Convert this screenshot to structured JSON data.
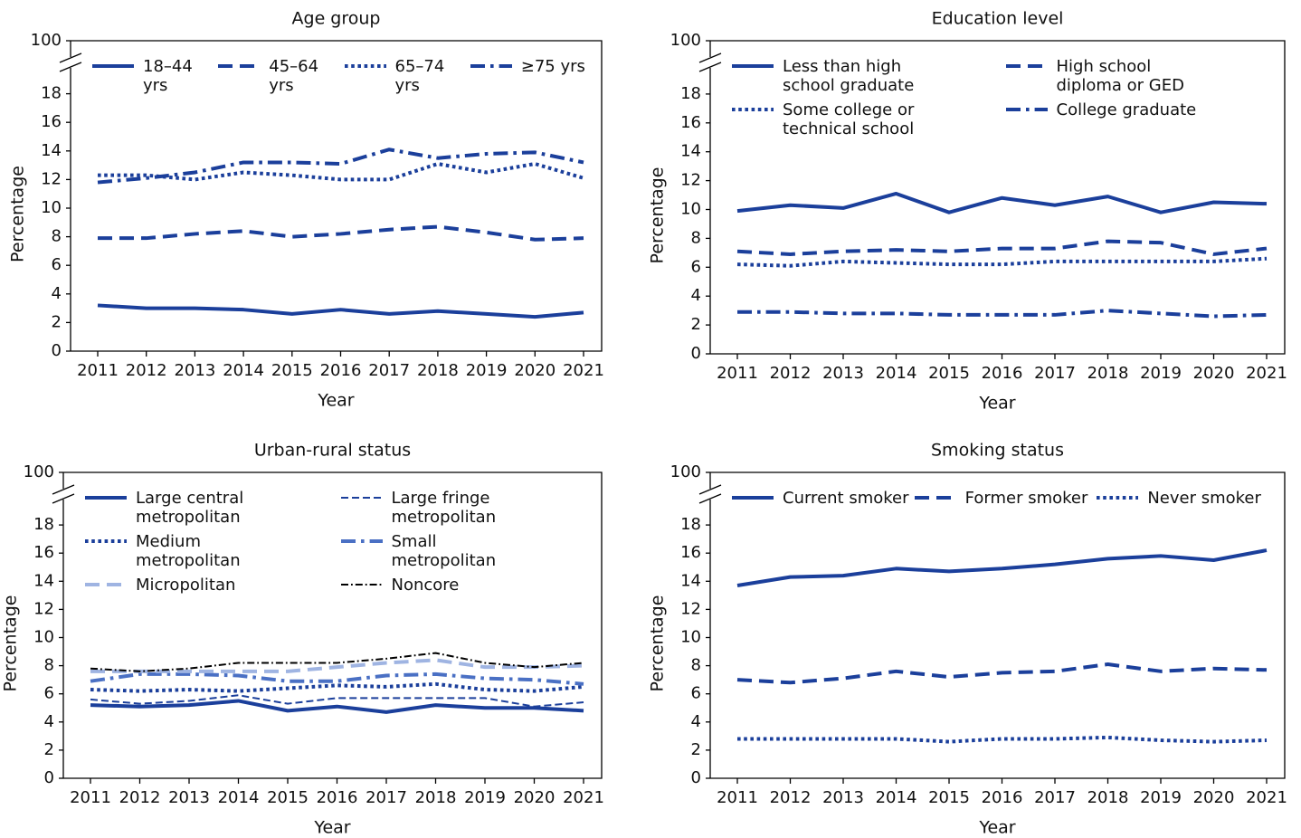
{
  "chart_data": [
    {
      "type": "line",
      "title": "Age group",
      "xlabel": "Year",
      "ylabel": "Percentage",
      "categories": [
        "2011",
        "2012",
        "2013",
        "2014",
        "2015",
        "2016",
        "2017",
        "2018",
        "2019",
        "2020",
        "2021"
      ],
      "ylim": [
        0,
        100
      ],
      "yticks": [
        0,
        2,
        4,
        6,
        8,
        10,
        12,
        14,
        16,
        18,
        100
      ],
      "axis_break": true,
      "legend_columns": 4,
      "series": [
        {
          "name": "18–44 yrs",
          "color": "#1b3f9b",
          "linestyle": "solid",
          "linewidth": 4,
          "values": [
            3.2,
            3.0,
            3.0,
            2.9,
            2.6,
            2.9,
            2.6,
            2.8,
            2.6,
            2.4,
            2.7
          ]
        },
        {
          "name": "45–64 yrs",
          "color": "#1b3f9b",
          "linestyle": "dashed",
          "linewidth": 4,
          "values": [
            7.9,
            7.9,
            8.2,
            8.4,
            8.0,
            8.2,
            8.5,
            8.7,
            8.3,
            7.8,
            7.9
          ]
        },
        {
          "name": "65–74 yrs",
          "color": "#1b3f9b",
          "linestyle": "dotted",
          "linewidth": 4,
          "values": [
            12.3,
            12.3,
            12.0,
            12.5,
            12.3,
            12.0,
            12.0,
            13.1,
            12.5,
            13.1,
            12.1
          ]
        },
        {
          "name": "≥75 yrs",
          "color": "#1b3f9b",
          "linestyle": "dashdot",
          "linewidth": 4,
          "values": [
            11.8,
            12.1,
            12.5,
            13.2,
            13.2,
            13.1,
            14.1,
            13.5,
            13.8,
            13.9,
            13.2
          ]
        }
      ]
    },
    {
      "type": "line",
      "title": "Education level",
      "xlabel": "Year",
      "ylabel": "Percentage",
      "categories": [
        "2011",
        "2012",
        "2013",
        "2014",
        "2015",
        "2016",
        "2017",
        "2018",
        "2019",
        "2020",
        "2021"
      ],
      "ylim": [
        0,
        100
      ],
      "yticks": [
        0,
        2,
        4,
        6,
        8,
        10,
        12,
        14,
        16,
        18,
        100
      ],
      "axis_break": true,
      "legend_columns": 2,
      "series": [
        {
          "name": "Less than high school graduate",
          "color": "#1b3f9b",
          "linestyle": "solid",
          "linewidth": 4,
          "values": [
            9.9,
            10.3,
            10.1,
            11.1,
            9.8,
            10.8,
            10.3,
            10.9,
            9.8,
            10.5,
            10.4
          ]
        },
        {
          "name": "High school diploma or GED",
          "color": "#1b3f9b",
          "linestyle": "dashed",
          "linewidth": 4,
          "values": [
            7.1,
            6.9,
            7.1,
            7.2,
            7.1,
            7.3,
            7.3,
            7.8,
            7.7,
            6.9,
            7.3
          ]
        },
        {
          "name": "Some college or technical school",
          "color": "#1b3f9b",
          "linestyle": "dotted",
          "linewidth": 4,
          "values": [
            6.2,
            6.1,
            6.4,
            6.3,
            6.2,
            6.2,
            6.4,
            6.4,
            6.4,
            6.4,
            6.6
          ]
        },
        {
          "name": "College graduate",
          "color": "#1b3f9b",
          "linestyle": "dashdot",
          "linewidth": 4,
          "values": [
            2.9,
            2.9,
            2.8,
            2.8,
            2.7,
            2.7,
            2.7,
            3.0,
            2.8,
            2.6,
            2.7
          ]
        }
      ]
    },
    {
      "type": "line",
      "title": "Urban-rural status",
      "xlabel": "Year",
      "ylabel": "Percentage",
      "categories": [
        "2011",
        "2012",
        "2013",
        "2014",
        "2015",
        "2016",
        "2017",
        "2018",
        "2019",
        "2020",
        "2021"
      ],
      "ylim": [
        0,
        100
      ],
      "yticks": [
        0,
        2,
        4,
        6,
        8,
        10,
        12,
        14,
        16,
        18,
        100
      ],
      "axis_break": true,
      "legend_columns": 2,
      "series": [
        {
          "name": "Large central metropolitan",
          "color": "#1b3f9b",
          "linestyle": "solid",
          "linewidth": 4,
          "values": [
            5.2,
            5.1,
            5.2,
            5.5,
            4.8,
            5.1,
            4.7,
            5.2,
            5.0,
            5.0,
            4.8
          ]
        },
        {
          "name": "Large fringe metropolitan",
          "color": "#1b3f9b",
          "linestyle": "dashed",
          "linewidth": 2,
          "values": [
            5.6,
            5.3,
            5.5,
            5.9,
            5.3,
            5.7,
            5.7,
            5.7,
            5.7,
            5.1,
            5.4
          ]
        },
        {
          "name": "Medium metropolitan",
          "color": "#1b3f9b",
          "linestyle": "dotted",
          "linewidth": 4,
          "values": [
            6.3,
            6.2,
            6.3,
            6.2,
            6.4,
            6.6,
            6.5,
            6.7,
            6.3,
            6.2,
            6.5
          ]
        },
        {
          "name": "Small metropolitan",
          "color": "#4a70c4",
          "linestyle": "dashdot",
          "linewidth": 4,
          "values": [
            6.9,
            7.4,
            7.4,
            7.3,
            6.9,
            6.9,
            7.3,
            7.4,
            7.1,
            7.0,
            6.7
          ]
        },
        {
          "name": "Micropolitan",
          "color": "#9fb4e2",
          "linestyle": "dashed",
          "linewidth": 4,
          "values": [
            7.6,
            7.6,
            7.6,
            7.6,
            7.6,
            7.9,
            8.2,
            8.4,
            7.9,
            7.9,
            8.0
          ]
        },
        {
          "name": "Noncore",
          "color": "#000000",
          "linestyle": "dashdot",
          "linewidth": 2,
          "values": [
            7.8,
            7.6,
            7.8,
            8.2,
            8.2,
            8.2,
            8.5,
            8.9,
            8.2,
            7.9,
            8.2
          ]
        }
      ]
    },
    {
      "type": "line",
      "title": "Smoking status",
      "xlabel": "Year",
      "ylabel": "Percentage",
      "categories": [
        "2011",
        "2012",
        "2013",
        "2014",
        "2015",
        "2016",
        "2017",
        "2018",
        "2019",
        "2020",
        "2021"
      ],
      "ylim": [
        0,
        100
      ],
      "yticks": [
        0,
        2,
        4,
        6,
        8,
        10,
        12,
        14,
        16,
        18,
        100
      ],
      "axis_break": true,
      "legend_columns": 3,
      "series": [
        {
          "name": "Current smoker",
          "color": "#1b3f9b",
          "linestyle": "solid",
          "linewidth": 4,
          "values": [
            13.7,
            14.3,
            14.4,
            14.9,
            14.7,
            14.9,
            15.2,
            15.6,
            15.8,
            15.5,
            16.2
          ]
        },
        {
          "name": "Former smoker",
          "color": "#1b3f9b",
          "linestyle": "dashed",
          "linewidth": 4,
          "values": [
            7.0,
            6.8,
            7.1,
            7.6,
            7.2,
            7.5,
            7.6,
            8.1,
            7.6,
            7.8,
            7.7
          ]
        },
        {
          "name": "Never smoker",
          "color": "#1b3f9b",
          "linestyle": "dotted",
          "linewidth": 4,
          "values": [
            2.8,
            2.8,
            2.8,
            2.8,
            2.6,
            2.8,
            2.8,
            2.9,
            2.7,
            2.6,
            2.7
          ]
        }
      ]
    }
  ]
}
